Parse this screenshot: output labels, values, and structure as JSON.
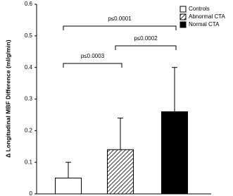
{
  "chart_data": {
    "type": "bar",
    "y_label": "Δ Longitudinal MBF Difference (ml/g/min)",
    "categories": [
      "Controls",
      "Abnormal CTA",
      "Normal CTA"
    ],
    "values": [
      0.05,
      0.14,
      0.26
    ],
    "errors": [
      0.05,
      0.1,
      0.14
    ],
    "colors": [
      "#ffffff",
      "#ffffff",
      "#000000"
    ],
    "patterns": [
      "solid",
      "hatch",
      "solid"
    ],
    "ylim": [
      0,
      0.6
    ],
    "yticks": [
      0,
      0.1,
      0.2,
      0.3,
      0.4,
      0.5,
      0.6
    ],
    "legend": "upper right",
    "annotations": [
      {
        "text": "p≤0.0001",
        "from": "Controls",
        "to": "Normal CTA"
      },
      {
        "text": "p≤0.0002",
        "from": "Abnormal CTA",
        "to": "Normal CTA"
      },
      {
        "text": "p≤0.0003",
        "from": "Controls",
        "to": "Abnormal CTA"
      }
    ]
  }
}
